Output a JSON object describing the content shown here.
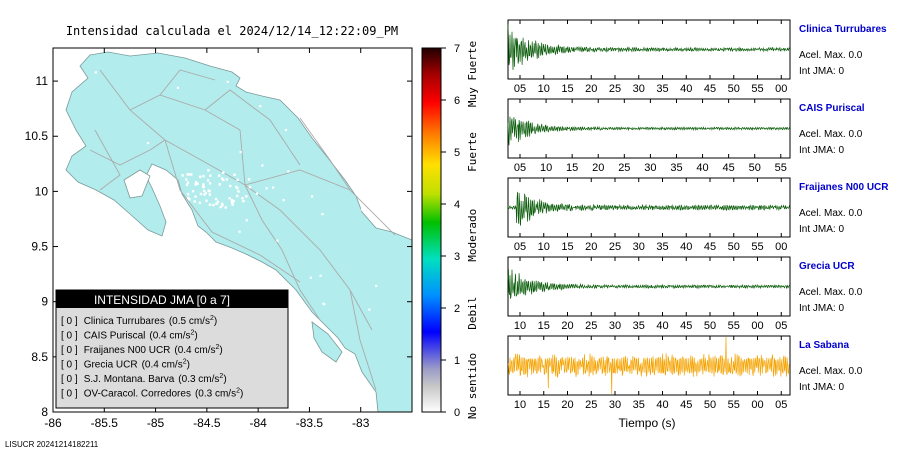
{
  "header": {
    "title": "Intensidad calculada el 2024/12/14_12:22:09_PM"
  },
  "footer": {
    "code": "LISUCR 20241214182211"
  },
  "map": {
    "lon_ticks": [
      "-86",
      "-85.5",
      "-85",
      "-84.5",
      "-84",
      "-83.5",
      "-83"
    ],
    "lat_ticks": [
      "11",
      "10.5",
      "10",
      "9.5",
      "9",
      "8.5",
      "8"
    ],
    "xlim": [
      -86,
      -82.5
    ],
    "ylim": [
      8,
      11.3
    ],
    "land_color": "#b3ecec"
  },
  "legend": {
    "title": "INTENSIDAD JMA [0 a 7]",
    "items": [
      {
        "value": "[ 0 ]",
        "station": "Clinica Turrubares",
        "pga": "(0.5 cm/s",
        "sup": "2",
        "close": ")"
      },
      {
        "value": "[ 0 ]",
        "station": "CAIS Puriscal",
        "pga": "(0.4 cm/s",
        "sup": "2",
        "close": ")"
      },
      {
        "value": "[ 0 ]",
        "station": "Fraijanes N00 UCR",
        "pga": "(0.4 cm/s",
        "sup": "2",
        "close": ")"
      },
      {
        "value": "[ 0 ]",
        "station": "Grecia UCR",
        "pga": "(0.4 cm/s",
        "sup": "2",
        "close": ")"
      },
      {
        "value": "[ 0 ]",
        "station": "S.J. Montana. Barva",
        "pga": "(0.3 cm/s",
        "sup": "2",
        "close": ")"
      },
      {
        "value": "[ 0 ]",
        "station": "OV-Caracol. Corredores",
        "pga": "(0.3 cm/s",
        "sup": "2",
        "close": ")"
      }
    ]
  },
  "colorbar": {
    "ticks": [
      "0",
      "1",
      "2",
      "3",
      "4",
      "5",
      "6",
      "7"
    ],
    "labels": [
      "No sentido",
      "Debil",
      "Moderado",
      "Fuerte",
      "Muy Fuerte"
    ]
  },
  "chart_data": [
    {
      "type": "line",
      "station": "Clinica Turrubares",
      "pga_label": "Acel. Max. 0.0",
      "jma_label": "Int JMA: 0",
      "color": "#0a5c0a",
      "x_ticks": [
        "05",
        "10",
        "15",
        "20",
        "25",
        "30",
        "35",
        "40",
        "45",
        "50",
        "55",
        "00"
      ],
      "ylim": [
        -1,
        1
      ],
      "envelope": {
        "onset": 0.0,
        "peak": 0.95,
        "decay": 0.085,
        "noise": 0.07,
        "seed": 11
      }
    },
    {
      "type": "line",
      "station": "CAIS Puriscal",
      "pga_label": "Acel. Max. 0.0",
      "jma_label": "Int JMA: 0",
      "color": "#0a5c0a",
      "x_ticks": [
        "05",
        "10",
        "15",
        "20",
        "25",
        "30",
        "35",
        "40",
        "45",
        "50",
        "55"
      ],
      "ylim": [
        -1,
        1
      ],
      "envelope": {
        "onset": 0.0,
        "peak": 0.8,
        "decay": 0.07,
        "noise": 0.05,
        "seed": 23
      }
    },
    {
      "type": "line",
      "station": "Fraijanes N00 UCR",
      "pga_label": "Acel. Max. 0.0",
      "jma_label": "Int JMA: 0",
      "color": "#0a5c0a",
      "x_ticks": [
        "05",
        "10",
        "15",
        "20",
        "25",
        "30",
        "35",
        "40",
        "45",
        "50",
        "55",
        "00"
      ],
      "ylim": [
        -1,
        1
      ],
      "envelope": {
        "onset": 0.03,
        "peak": 0.85,
        "decay": 0.06,
        "noise": 0.1,
        "seed": 37
      }
    },
    {
      "type": "line",
      "station": "Grecia UCR",
      "pga_label": "Acel. Max. 0.0",
      "jma_label": "Int JMA: 0",
      "color": "#0a5c0a",
      "x_ticks": [
        "10",
        "15",
        "20",
        "25",
        "30",
        "35",
        "40",
        "45",
        "50",
        "55",
        "00",
        "05"
      ],
      "ylim": [
        -1,
        1
      ],
      "envelope": {
        "onset": 0.0,
        "peak": 0.75,
        "decay": 0.075,
        "noise": 0.06,
        "seed": 51
      }
    },
    {
      "type": "line",
      "station": "La Sabana",
      "pga_label": "Acel. Max. 0.0",
      "jma_label": "Int JMA: 0",
      "color": "#f5a300",
      "x_ticks": [
        "10",
        "15",
        "20",
        "25",
        "30",
        "35",
        "40",
        "45",
        "50",
        "55",
        "00",
        "05"
      ],
      "xlabel": "Tiempo (s)",
      "ylim": [
        -1,
        1
      ],
      "envelope": {
        "onset": 0.0,
        "peak": 0.45,
        "decay": 0.0,
        "noise": 0.45,
        "seed": 77
      }
    }
  ]
}
